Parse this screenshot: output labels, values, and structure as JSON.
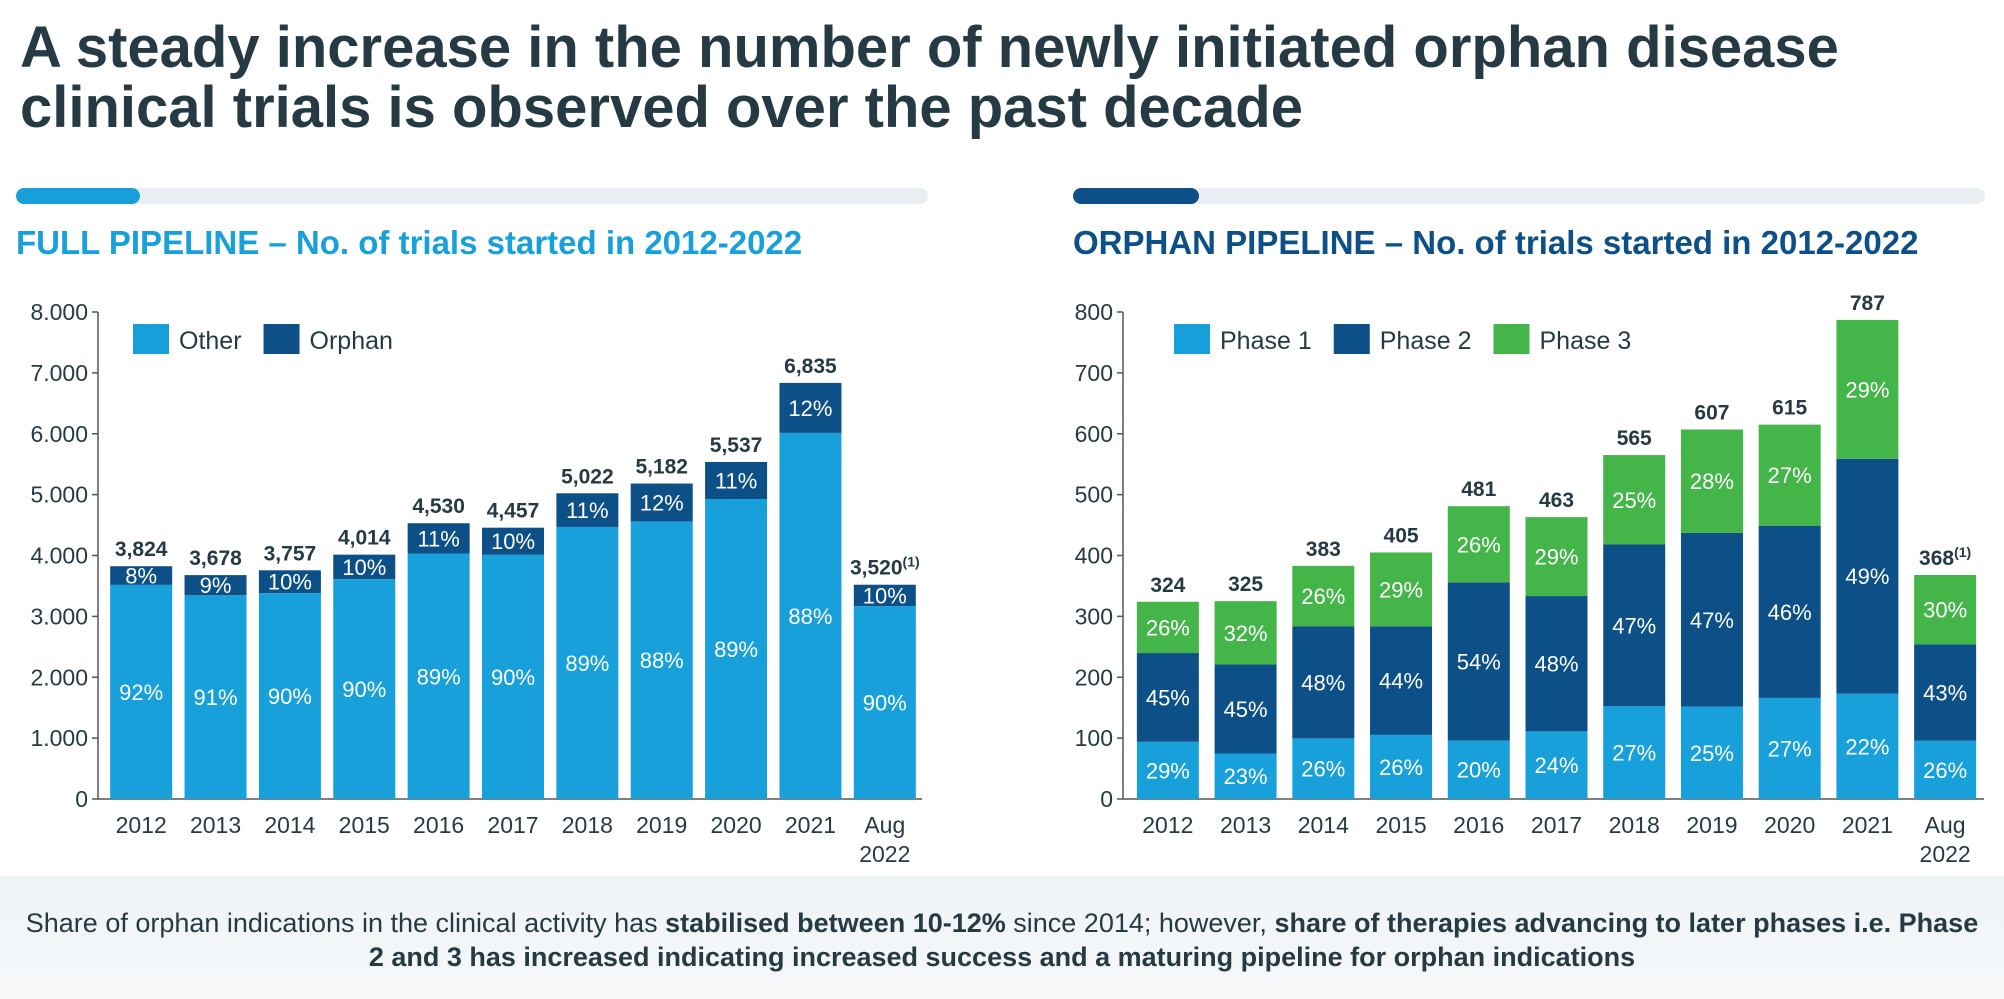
{
  "title": "A steady increase in the number of newly initiated orphan disease clinical trials is observed over the past decade",
  "colors": {
    "light_blue": "#18a0db",
    "dark_blue": "#0d4f87",
    "green": "#44b649",
    "track": "#e9eef3",
    "text": "#263a44"
  },
  "footer": {
    "part1": "Share of orphan indications in the clinical activity has ",
    "bold1": "stabilised between 10-12%",
    "part2": " since 2014; however, ",
    "bold2": "share of therapies advancing to later phases i.e. Phase 2 and 3 has increased indicating increased success and a maturing pipeline for orphan indications"
  },
  "chart_data": [
    {
      "type": "bar",
      "stacked": true,
      "title": "FULL PIPELINE – No. of trials started in 2012-2022",
      "categories": [
        "2012",
        "2013",
        "2014",
        "2015",
        "2016",
        "2017",
        "2018",
        "2019",
        "2020",
        "2021",
        "Aug\n2022"
      ],
      "totals": [
        "3,824",
        "3,678",
        "3,757",
        "4,014",
        "4,530",
        "4,457",
        "5,022",
        "5,182",
        "5,537",
        "6,835",
        "3,520"
      ],
      "total_values": [
        3824,
        3678,
        3757,
        4014,
        4530,
        4457,
        5022,
        5182,
        5537,
        6835,
        3520
      ],
      "footnote_marks": [
        "",
        "",
        "",
        "",
        "",
        "",
        "",
        "",
        "",
        "",
        "(1)"
      ],
      "series": [
        {
          "name": "Other",
          "color": "#18a0db",
          "labels": [
            "92%",
            "91%",
            "90%",
            "90%",
            "89%",
            "90%",
            "89%",
            "88%",
            "89%",
            "88%",
            "90%"
          ]
        },
        {
          "name": "Orphan",
          "color": "#0d4f87",
          "labels": [
            "8%",
            "9%",
            "10%",
            "10%",
            "11%",
            "10%",
            "11%",
            "12%",
            "11%",
            "12%",
            "10%"
          ]
        }
      ],
      "ylim": [
        0,
        8000
      ],
      "yticks": [
        0,
        1000,
        2000,
        3000,
        4000,
        5000,
        6000,
        7000,
        8000
      ],
      "ytick_labels": [
        "0",
        "1.000",
        "2.000",
        "3.000",
        "4.000",
        "5.000",
        "6.000",
        "7.000",
        "8.000"
      ],
      "legend": "top-left"
    },
    {
      "type": "bar",
      "stacked": true,
      "title": "ORPHAN PIPELINE – No. of trials started in 2012-2022",
      "categories": [
        "2012",
        "2013",
        "2014",
        "2015",
        "2016",
        "2017",
        "2018",
        "2019",
        "2020",
        "2021",
        "Aug\n2022"
      ],
      "totals": [
        "324",
        "325",
        "383",
        "405",
        "481",
        "463",
        "565",
        "607",
        "615",
        "787",
        "368"
      ],
      "total_values": [
        324,
        325,
        383,
        405,
        481,
        463,
        565,
        607,
        615,
        787,
        368
      ],
      "footnote_marks": [
        "",
        "",
        "",
        "",
        "",
        "",
        "",
        "",
        "",
        "",
        "(1)"
      ],
      "series": [
        {
          "name": "Phase 1",
          "color": "#18a0db",
          "labels": [
            "29%",
            "23%",
            "26%",
            "26%",
            "20%",
            "24%",
            "27%",
            "25%",
            "27%",
            "22%",
            "26%"
          ]
        },
        {
          "name": "Phase 2",
          "color": "#0d4f87",
          "labels": [
            "45%",
            "45%",
            "48%",
            "44%",
            "54%",
            "48%",
            "47%",
            "47%",
            "46%",
            "49%",
            "43%"
          ]
        },
        {
          "name": "Phase 3",
          "color": "#44b649",
          "labels": [
            "26%",
            "32%",
            "26%",
            "29%",
            "26%",
            "29%",
            "25%",
            "28%",
            "27%",
            "29%",
            "30%"
          ]
        }
      ],
      "ylim": [
        0,
        800
      ],
      "yticks": [
        0,
        100,
        200,
        300,
        400,
        500,
        600,
        700,
        800
      ],
      "ytick_labels": [
        "0",
        "100",
        "200",
        "300",
        "400",
        "500",
        "600",
        "700",
        "800"
      ],
      "legend": "top-left"
    }
  ]
}
